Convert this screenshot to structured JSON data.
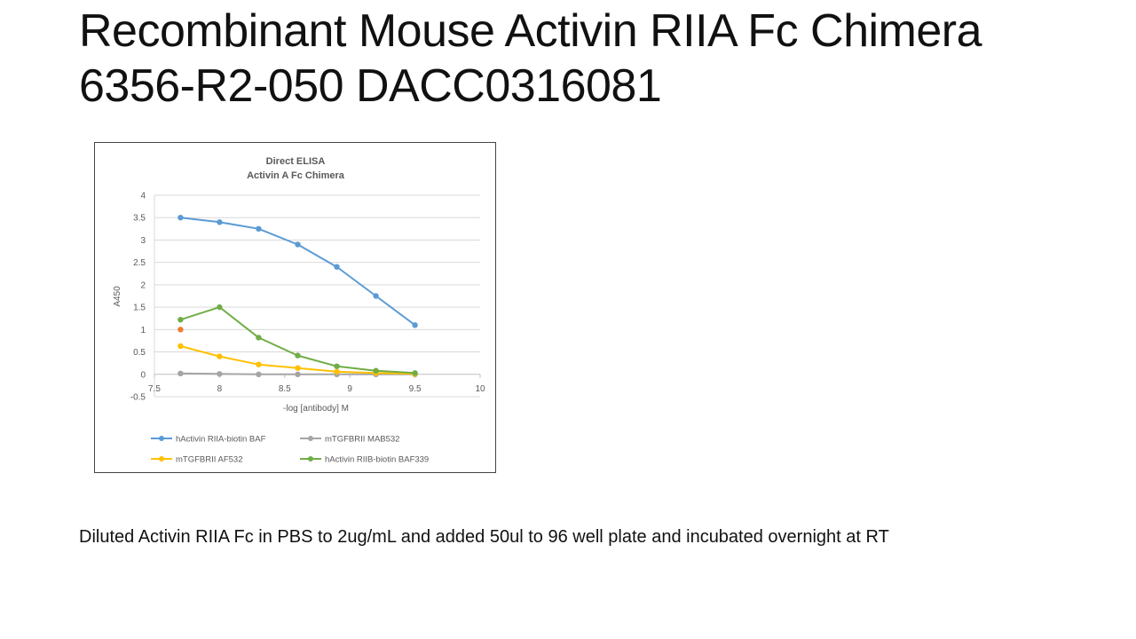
{
  "slide": {
    "title_line1": "Recombinant Mouse Activin RIIA Fc Chimera",
    "title_line2": "6356-R2-050 DACC0316081",
    "caption": "Diluted Activin RIIA Fc in PBS to 2ug/mL and added 50ul to 96 well plate and incubated overnight at RT"
  },
  "chart_data": {
    "type": "line",
    "title": "Direct ELISA",
    "subtitle": "Activin A Fc Chimera",
    "xlabel": "-log [antibody] M",
    "ylabel": "A450",
    "xlim": [
      7.5,
      10
    ],
    "ylim": [
      -0.5,
      4
    ],
    "x_ticks": [
      "7.5",
      "8",
      "8.5",
      "9",
      "9.5",
      "10"
    ],
    "y_ticks": [
      "-0.5",
      "0",
      "0.5",
      "1",
      "1.5",
      "2",
      "2.5",
      "3",
      "3.5",
      "4"
    ],
    "grid": true,
    "legend_position": "bottom",
    "series": [
      {
        "name": "hActivin RIIA-biotin BAF",
        "color": "#5b9bd5",
        "x": [
          7.7,
          8.0,
          8.3,
          8.6,
          8.9,
          9.2,
          9.5
        ],
        "y": [
          3.5,
          3.4,
          3.25,
          2.9,
          2.4,
          1.75,
          1.1
        ]
      },
      {
        "name": "mTGFBRII MAB532",
        "color": "#a5a5a5",
        "x": [
          7.7,
          8.0,
          8.3,
          8.6,
          8.9,
          9.2,
          9.5
        ],
        "y": [
          0.02,
          0.01,
          0.0,
          0.0,
          0.0,
          0.0,
          0.0
        ]
      },
      {
        "name": "mTGFBRII AF532",
        "color": "#ffc000",
        "x": [
          7.7,
          8.0,
          8.3,
          8.6,
          8.9,
          9.2,
          9.5
        ],
        "y": [
          0.63,
          0.4,
          0.22,
          0.14,
          0.06,
          0.03,
          0.01
        ]
      },
      {
        "name": "hActivin RIIB-biotin BAF339",
        "color": "#70ad47",
        "x": [
          7.7,
          8.0,
          8.3,
          8.6,
          8.9,
          9.2,
          9.5
        ],
        "y": [
          1.22,
          1.5,
          0.82,
          0.42,
          0.18,
          0.08,
          0.03
        ]
      },
      {
        "name": "",
        "color": "#ed7d31",
        "legend": false,
        "x": [
          7.7
        ],
        "y": [
          1.0
        ]
      }
    ]
  }
}
